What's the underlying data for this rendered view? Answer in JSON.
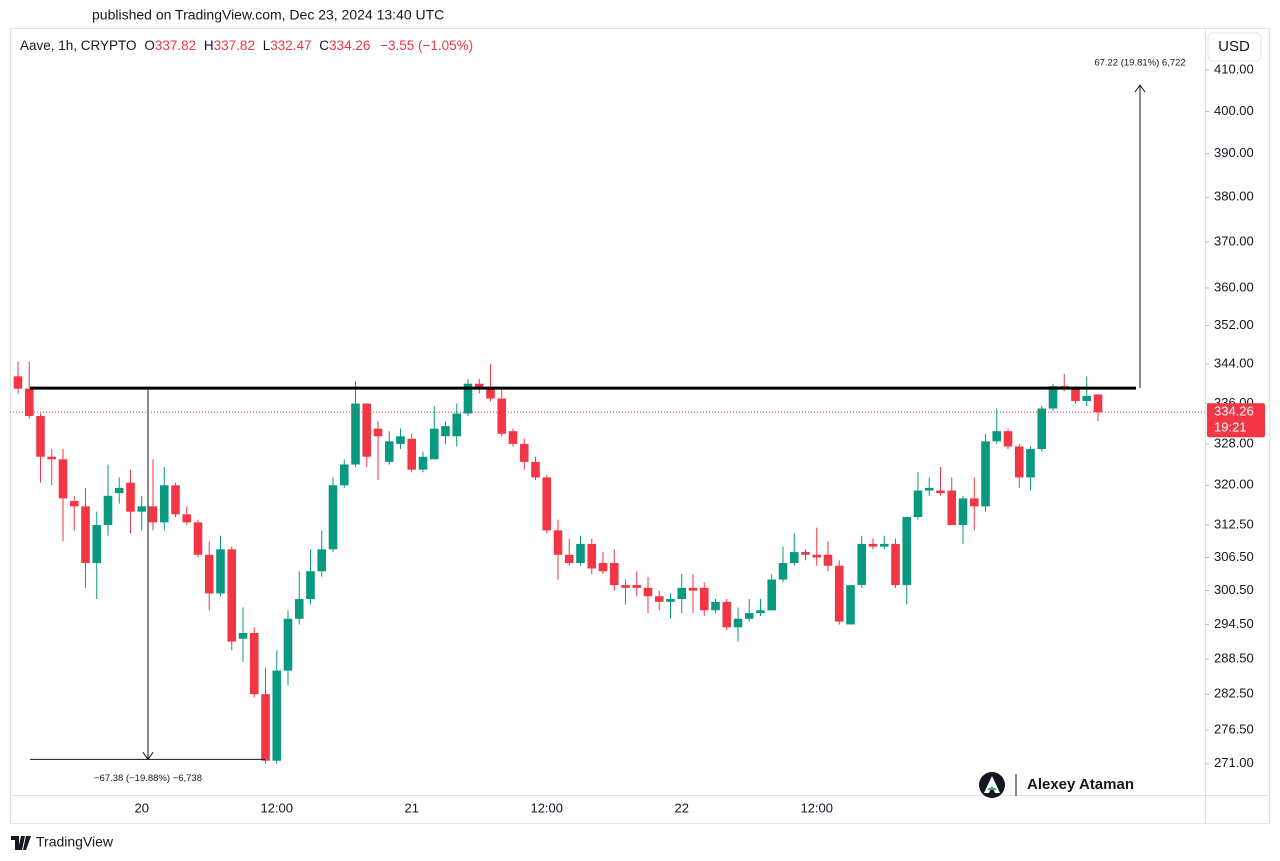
{
  "header": {
    "published": "published on TradingView.com, Dec 23, 2024 13:40 UTC"
  },
  "chart_data": {
    "type": "candlestick",
    "symbol": "Aave, 1h, CRYPTO",
    "ohlc_keys": [
      "O",
      "H",
      "L",
      "C"
    ],
    "change": "−3.55 (−1.05%)",
    "currency": "USD",
    "countdown": "19:21",
    "up_color": "#089981",
    "down_color": "#f23645",
    "log": true,
    "grid": false,
    "categories": [
      null,
      null,
      null,
      null,
      null,
      null,
      null,
      null,
      null,
      null,
      null,
      "20",
      null,
      null,
      null,
      null,
      null,
      null,
      null,
      null,
      null,
      null,
      null,
      "12:00",
      null,
      null,
      null,
      null,
      null,
      null,
      null,
      null,
      null,
      null,
      null,
      "21",
      null,
      null,
      null,
      null,
      null,
      null,
      null,
      null,
      null,
      null,
      null,
      "12:00",
      null,
      null,
      null,
      null,
      null,
      null,
      null,
      null,
      null,
      null,
      null,
      "22",
      null,
      null,
      null,
      null,
      null,
      null,
      null,
      null,
      null,
      null,
      null,
      "12:00",
      null,
      null,
      null,
      null,
      null,
      null,
      null,
      null,
      null,
      null,
      null,
      null,
      null,
      null,
      null,
      null,
      null,
      null,
      null,
      null,
      null,
      null,
      null,
      null,
      null
    ],
    "open": [
      341.5,
      339,
      333.5,
      325.5,
      325,
      317,
      316,
      305.5,
      312.5,
      318.5,
      320.5,
      315,
      316,
      313,
      320,
      314.5,
      313,
      307,
      300,
      308,
      292,
      293,
      282.5,
      271.5,
      286.5,
      295.5,
      299,
      304,
      308,
      320,
      324,
      336,
      331,
      324.5,
      328,
      329,
      323,
      325,
      329.5,
      329.5,
      334,
      340,
      339,
      337,
      330.5,
      328,
      324.5,
      321.5,
      311.5,
      307,
      305.5,
      309,
      305.5,
      305.5,
      301.5,
      301.5,
      301,
      299.5,
      298.5,
      299,
      301,
      301,
      297,
      298.5,
      294,
      295.5,
      296.5,
      297,
      302.5,
      305.5,
      307.5,
      307,
      307,
      305,
      294.5,
      301.5,
      309,
      308.5,
      309,
      301.5,
      314,
      319,
      319,
      319,
      312.5,
      317.5,
      316,
      328.5,
      330.5,
      327.5,
      321.5,
      327,
      335,
      339.5,
      339,
      336.5,
      337.82
    ],
    "high": [
      344.5,
      344.5,
      334,
      327,
      327,
      318,
      319.5,
      315,
      324,
      321.5,
      323,
      318,
      325,
      323.5,
      320.5,
      316,
      313.5,
      309.5,
      310.5,
      308.5,
      297.5,
      294,
      287,
      290,
      297,
      304,
      308,
      311.5,
      321.5,
      325,
      340.5,
      336,
      332.5,
      330.5,
      331,
      330,
      326.5,
      335.5,
      332.5,
      336,
      341,
      341,
      344,
      339,
      331,
      329,
      325.5,
      322,
      313.5,
      310,
      310.5,
      310,
      307.5,
      308,
      302.5,
      304,
      303,
      300.5,
      300,
      303.5,
      303.5,
      302,
      299,
      299,
      297.5,
      299,
      299,
      303.5,
      308.5,
      311,
      308,
      312,
      309.5,
      306,
      301.5,
      310.5,
      310,
      310.5,
      310,
      314,
      322.5,
      321.5,
      323.5,
      321.5,
      318,
      321.5,
      330,
      335,
      331,
      328,
      327.5,
      335.5,
      340,
      342,
      339.5,
      341.5,
      337.82
    ],
    "low": [
      338,
      333,
      320.5,
      320,
      309.5,
      311.5,
      301,
      299,
      310.5,
      316.5,
      311,
      311.5,
      311.5,
      311.5,
      314,
      312.5,
      306.5,
      297,
      299.5,
      290,
      288,
      282,
      271,
      271,
      284,
      294.5,
      298,
      303,
      307.5,
      319.5,
      323.5,
      323.5,
      321,
      324,
      327,
      322.5,
      322.5,
      325,
      328,
      327.5,
      333.5,
      338,
      336.5,
      329.5,
      327.5,
      323,
      321,
      311,
      302.5,
      305,
      305,
      303.5,
      303.5,
      300.5,
      298,
      299.5,
      296.5,
      297,
      295.5,
      296.5,
      296.5,
      296,
      296.5,
      293.5,
      291.5,
      295,
      296,
      297,
      302,
      305,
      306,
      305,
      304,
      294.5,
      294.5,
      301,
      308,
      308,
      301,
      298,
      313.5,
      318,
      318,
      312.5,
      309,
      311.5,
      315,
      328,
      327,
      319.5,
      319,
      326.5,
      334.5,
      338.5,
      336,
      335.5,
      332.47
    ],
    "close": [
      339,
      333.5,
      325.5,
      325,
      317.5,
      316,
      305.5,
      312.5,
      318,
      319.5,
      315,
      316,
      313,
      320,
      314.5,
      313,
      307,
      300,
      308,
      291.5,
      293,
      282.5,
      271.5,
      286.5,
      295.5,
      299,
      304,
      308,
      320,
      324,
      336,
      325.5,
      329.5,
      328.5,
      329.5,
      323,
      325.5,
      331,
      331.5,
      334,
      340,
      339,
      337,
      330,
      328,
      324.5,
      321.5,
      311.5,
      307,
      305.5,
      309,
      304.5,
      304,
      301.5,
      301,
      301,
      299.5,
      298.5,
      299,
      301,
      300.5,
      297,
      298.5,
      294,
      295.5,
      296.5,
      297,
      302.5,
      305.5,
      307.5,
      307,
      306.5,
      305,
      295,
      301.5,
      309,
      308.5,
      309,
      301.5,
      314,
      319,
      319.5,
      318.5,
      312.5,
      317.5,
      316,
      328.5,
      330.5,
      327.5,
      321.5,
      327,
      335,
      339.5,
      339,
      336.5,
      337.5,
      334.26
    ],
    "ylim": [
      266,
      420.4
    ],
    "yticks": [
      {
        "value": 410,
        "label": "410.00"
      },
      {
        "value": 400,
        "label": "400.00"
      },
      {
        "value": 390,
        "label": "390.00"
      },
      {
        "value": 380,
        "label": "380.00"
      },
      {
        "value": 370,
        "label": "370.00"
      },
      {
        "value": 360,
        "label": "360.00"
      },
      {
        "value": 352,
        "label": "352.00"
      },
      {
        "value": 344,
        "label": "344.00"
      },
      {
        "value": 336,
        "label": "336.00"
      },
      {
        "value": 328,
        "label": "328.00"
      },
      {
        "value": 320,
        "label": "320.00"
      },
      {
        "value": 312.5,
        "label": "312.50"
      },
      {
        "value": 306.5,
        "label": "306.50"
      },
      {
        "value": 300.5,
        "label": "300.50"
      },
      {
        "value": 294.5,
        "label": "294.50"
      },
      {
        "value": 288.5,
        "label": "288.50"
      },
      {
        "value": 282.5,
        "label": "282.50"
      },
      {
        "value": 276.5,
        "label": "276.50"
      },
      {
        "value": 271,
        "label": "271.00"
      }
    ],
    "neckline": 339.1,
    "measurements": [
      {
        "label": "−67.38 (−19.88%) −6,738",
        "from": 339.1,
        "to": 271.72
      },
      {
        "label": "67.22 (19.81%) 6,722",
        "from": 339.1,
        "to": 406.32
      }
    ]
  },
  "watermark": "Alexey Ataman",
  "footer": {
    "brand": "TradingView"
  }
}
